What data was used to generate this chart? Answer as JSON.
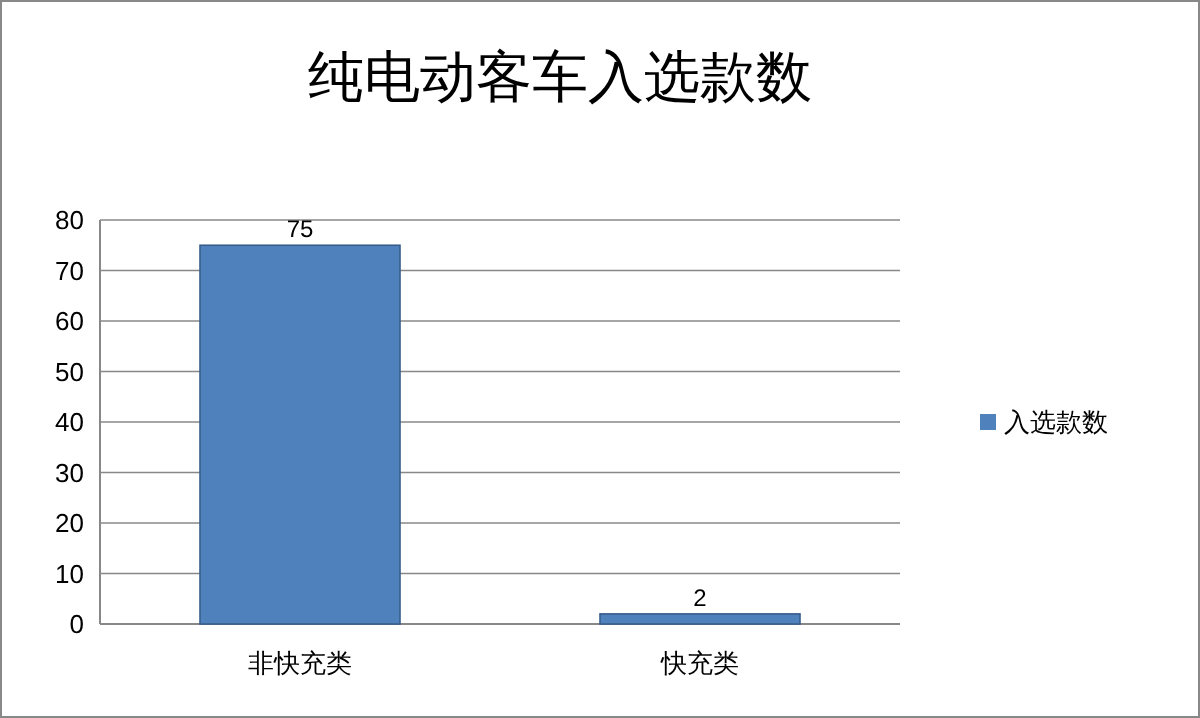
{
  "chart_data": {
    "type": "bar",
    "title": "纯电动客车入选款数",
    "categories": [
      "非快充类",
      "快充类"
    ],
    "series": [
      {
        "name": "入选款数",
        "color": "#4f81bd",
        "values": [
          75,
          2
        ]
      }
    ],
    "ylim": [
      0,
      80
    ],
    "yticks": [
      0,
      10,
      20,
      30,
      40,
      50,
      60,
      70,
      80
    ],
    "grid": "y",
    "legend": "right",
    "data_labels": true
  }
}
